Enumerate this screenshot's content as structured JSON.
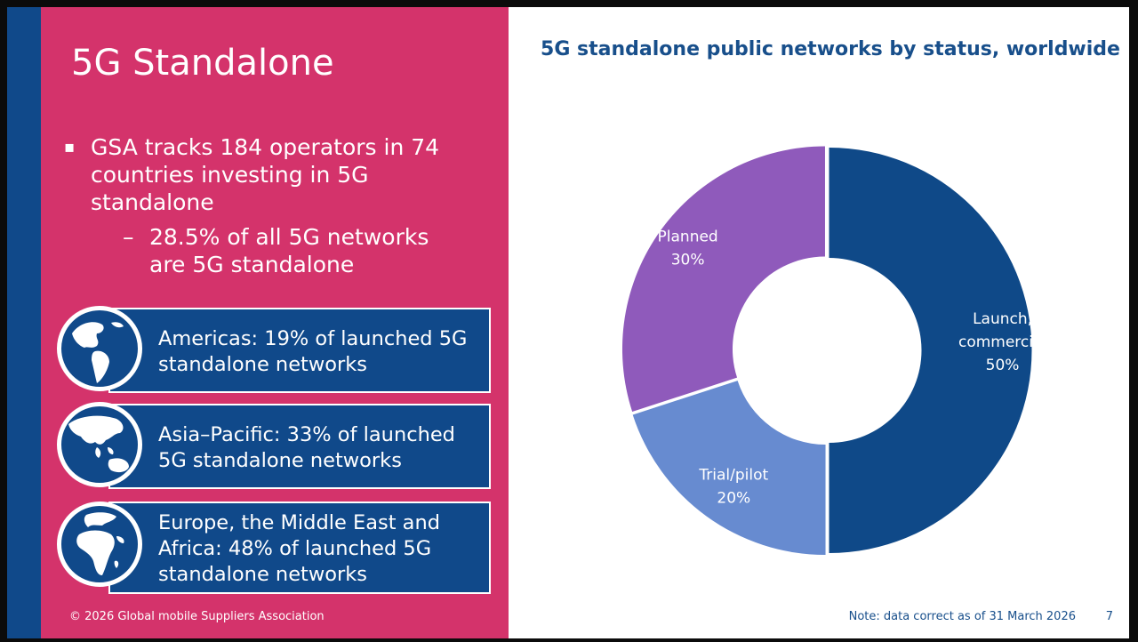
{
  "slide": {
    "title": "5G Standalone",
    "bullet_main": "GSA tracks 184 operators in 74 countries investing in 5G standalone",
    "bullet_sub": "28.5% of all 5G networks are 5G standalone",
    "bullet_mark": "▪",
    "sub_mark": "–",
    "copyright": "© 2026 Global mobile Suppliers Association",
    "note": "Note: data correct as of 31 March 2026",
    "page_number": "7"
  },
  "regions": [
    {
      "text": "Americas: 19% of launched 5G standalone networks",
      "icon": "globe-americas-icon"
    },
    {
      "text": "Asia–Pacific: 33% of launched 5G standalone networks",
      "icon": "globe-asia-pacific-icon"
    },
    {
      "text": "Europe, the Middle East and Africa: 48% of launched 5G standalone networks",
      "icon": "globe-emea-icon"
    }
  ],
  "colors": {
    "pink": "#d4336b",
    "navy": "#10498a",
    "title_blue": "#184f8b"
  },
  "chart_data": {
    "type": "pie",
    "donut": true,
    "title": "5G standalone public networks by status, worldwide",
    "slices": [
      {
        "label": "Launch, commercial",
        "value": 50,
        "display": "50%",
        "color": "#0f4988"
      },
      {
        "label": "Trial/pilot",
        "value": 20,
        "display": "20%",
        "color": "#678bd0"
      },
      {
        "label": "Planned",
        "value": 30,
        "display": "30%",
        "color": "#8f5abb"
      }
    ]
  }
}
